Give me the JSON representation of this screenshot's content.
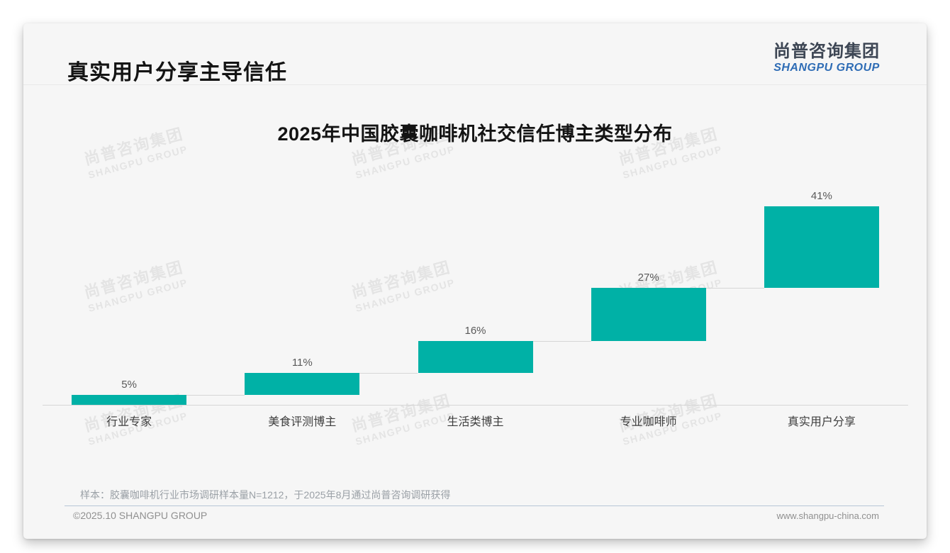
{
  "header": {
    "title": "真实用户分享主导信任",
    "logo_cn": "尚普咨询集团",
    "logo_en": "SHANGPU GROUP"
  },
  "chart_data": {
    "type": "bar",
    "variant": "waterfall",
    "title": "2025年中国胶囊咖啡机社交信任博主类型分布",
    "categories": [
      "行业专家",
      "美食评测博主",
      "生活类博主",
      "专业咖啡师",
      "真实用户分享"
    ],
    "values": [
      5,
      11,
      16,
      27,
      41
    ],
    "value_labels": [
      "5%",
      "11%",
      "16%",
      "27%",
      "41%"
    ],
    "unit": "%",
    "ylim": [
      0,
      100
    ],
    "grid": false,
    "legend": false,
    "bar_color": "#00B1A6",
    "connector_color": "#d6d6d6",
    "baseline_color": "#d6d6d6"
  },
  "watermark": {
    "cn": "尚普咨询集团",
    "en": "SHANGPU GROUP"
  },
  "footer": {
    "note": "样本：胶囊咖啡机行业市场调研样本量N=1212，于2025年8月通过尚普咨询调研获得",
    "copyright": "©2025.10 SHANGPU GROUP",
    "website": "www.shangpu-china.com"
  },
  "colors": {
    "accent_teal": "#00B1A6",
    "logo_blue": "#2e6cb5",
    "value_label_text": "#595959",
    "category_label_text": "#3d3d3d",
    "muted_text": "#9aa0a6",
    "footer_divider": "#b7c5d7",
    "card_background": "#f6f6f6"
  }
}
